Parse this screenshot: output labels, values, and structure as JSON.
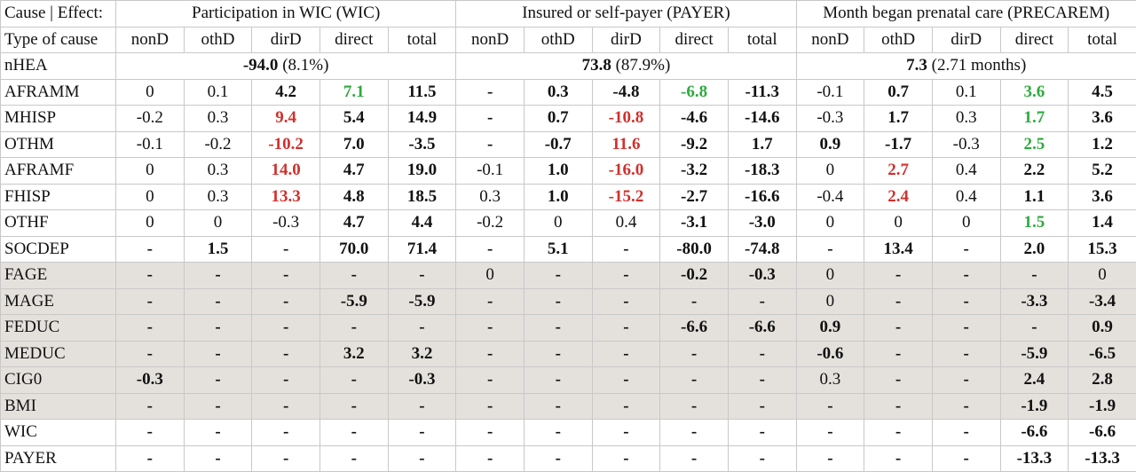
{
  "table": {
    "corner": "Cause | Effect:",
    "groups": [
      "Participation in WIC (WIC)",
      "Insured or self-payer (PAYER)",
      "Month began prenatal care (PRECAREM)"
    ],
    "type_label": "Type of cause",
    "subheaders": [
      "nonD",
      "othD",
      "dirD",
      "direct",
      "total"
    ],
    "summary": {
      "label": "nHEA",
      "cells": [
        {
          "value": "-94.0",
          "detail": "(8.1%)"
        },
        {
          "value": "73.8",
          "detail": "(87.9%)"
        },
        {
          "value": "7.3",
          "detail": "(2.71 months)"
        }
      ]
    },
    "rows": [
      {
        "label": "AFRAMM",
        "shaded": false,
        "cells": [
          "0",
          "0.1",
          "4.2",
          "7.1",
          "11.5",
          "-",
          "0.3",
          "-4.8",
          "-6.8",
          "-11.3",
          "-0.1",
          "0.7",
          "0.1",
          "3.6",
          "4.5"
        ],
        "styles": [
          "p",
          "p",
          "b",
          "g",
          "b",
          "b",
          "b",
          "b",
          "g",
          "b",
          "p",
          "b",
          "p",
          "g",
          "b"
        ]
      },
      {
        "label": "MHISP",
        "shaded": false,
        "cells": [
          "-0.2",
          "0.3",
          "9.4",
          "5.4",
          "14.9",
          "-",
          "0.7",
          "-10.8",
          "-4.6",
          "-14.6",
          "-0.3",
          "1.7",
          "0.3",
          "1.7",
          "3.6"
        ],
        "styles": [
          "p",
          "p",
          "r",
          "b",
          "b",
          "b",
          "b",
          "r",
          "b",
          "b",
          "p",
          "b",
          "p",
          "g",
          "b"
        ]
      },
      {
        "label": "OTHM",
        "shaded": false,
        "cells": [
          "-0.1",
          "-0.2",
          "-10.2",
          "7.0",
          "-3.5",
          "-",
          "-0.7",
          "11.6",
          "-9.2",
          "1.7",
          "0.9",
          "-1.7",
          "-0.3",
          "2.5",
          "1.2"
        ],
        "styles": [
          "p",
          "p",
          "r",
          "b",
          "b",
          "b",
          "b",
          "r",
          "b",
          "b",
          "b",
          "b",
          "p",
          "g",
          "b"
        ]
      },
      {
        "label": "AFRAMF",
        "shaded": false,
        "cells": [
          "0",
          "0.3",
          "14.0",
          "4.7",
          "19.0",
          "-0.1",
          "1.0",
          "-16.0",
          "-3.2",
          "-18.3",
          "0",
          "2.7",
          "0.4",
          "2.2",
          "5.2"
        ],
        "styles": [
          "p",
          "p",
          "r",
          "b",
          "b",
          "p",
          "b",
          "r",
          "b",
          "b",
          "p",
          "r",
          "p",
          "b",
          "b"
        ]
      },
      {
        "label": "FHISP",
        "shaded": false,
        "cells": [
          "0",
          "0.3",
          "13.3",
          "4.8",
          "18.5",
          "0.3",
          "1.0",
          "-15.2",
          "-2.7",
          "-16.6",
          "-0.4",
          "2.4",
          "0.4",
          "1.1",
          "3.6"
        ],
        "styles": [
          "p",
          "p",
          "r",
          "b",
          "b",
          "p",
          "b",
          "r",
          "b",
          "b",
          "p",
          "r",
          "p",
          "b",
          "b"
        ]
      },
      {
        "label": "OTHF",
        "shaded": false,
        "cells": [
          "0",
          "0",
          "-0.3",
          "4.7",
          "4.4",
          "-0.2",
          "0",
          "0.4",
          "-3.1",
          "-3.0",
          "0",
          "0",
          "0",
          "1.5",
          "1.4"
        ],
        "styles": [
          "p",
          "p",
          "p",
          "b",
          "b",
          "p",
          "p",
          "p",
          "b",
          "b",
          "p",
          "p",
          "p",
          "g",
          "b"
        ]
      },
      {
        "label": "SOCDEP",
        "shaded": false,
        "cells": [
          "-",
          "1.5",
          "-",
          "70.0",
          "71.4",
          "-",
          "5.1",
          "-",
          "-80.0",
          "-74.8",
          "-",
          "13.4",
          "-",
          "2.0",
          "15.3"
        ],
        "styles": [
          "b",
          "b",
          "b",
          "b",
          "b",
          "b",
          "b",
          "b",
          "b",
          "b",
          "b",
          "b",
          "b",
          "b",
          "b"
        ]
      },
      {
        "label": "FAGE",
        "shaded": true,
        "cells": [
          "-",
          "-",
          "-",
          "-",
          "-",
          "0",
          "-",
          "-",
          "-0.2",
          "-0.3",
          "0",
          "-",
          "-",
          "-",
          "0"
        ],
        "styles": [
          "b",
          "b",
          "b",
          "b",
          "b",
          "p",
          "b",
          "b",
          "b",
          "b",
          "p",
          "b",
          "b",
          "b",
          "p"
        ]
      },
      {
        "label": "MAGE",
        "shaded": true,
        "cells": [
          "-",
          "-",
          "-",
          "-5.9",
          "-5.9",
          "-",
          "-",
          "-",
          "-",
          "-",
          "0",
          "-",
          "-",
          "-3.3",
          "-3.4"
        ],
        "styles": [
          "b",
          "b",
          "b",
          "b",
          "b",
          "b",
          "b",
          "b",
          "b",
          "b",
          "p",
          "b",
          "b",
          "b",
          "b"
        ]
      },
      {
        "label": "FEDUC",
        "shaded": true,
        "cells": [
          "-",
          "-",
          "-",
          "-",
          "-",
          "-",
          "-",
          "-",
          "-6.6",
          "-6.6",
          "0.9",
          "-",
          "-",
          "-",
          "0.9"
        ],
        "styles": [
          "b",
          "b",
          "b",
          "b",
          "b",
          "b",
          "b",
          "b",
          "b",
          "b",
          "b",
          "b",
          "b",
          "b",
          "b"
        ]
      },
      {
        "label": "MEDUC",
        "shaded": true,
        "cells": [
          "-",
          "-",
          "-",
          "3.2",
          "3.2",
          "-",
          "-",
          "-",
          "-",
          "-",
          "-0.6",
          "-",
          "-",
          "-5.9",
          "-6.5"
        ],
        "styles": [
          "b",
          "b",
          "b",
          "b",
          "b",
          "b",
          "b",
          "b",
          "b",
          "b",
          "b",
          "b",
          "b",
          "b",
          "b"
        ]
      },
      {
        "label": "CIG0",
        "shaded": true,
        "cells": [
          "-0.3",
          "-",
          "-",
          "-",
          "-0.3",
          "-",
          "-",
          "-",
          "-",
          "-",
          "0.3",
          "-",
          "-",
          "2.4",
          "2.8"
        ],
        "styles": [
          "b",
          "b",
          "b",
          "b",
          "b",
          "b",
          "b",
          "b",
          "b",
          "b",
          "p",
          "b",
          "b",
          "b",
          "b"
        ]
      },
      {
        "label": "BMI",
        "shaded": true,
        "cells": [
          "-",
          "-",
          "-",
          "-",
          "-",
          "-",
          "-",
          "-",
          "-",
          "-",
          "-",
          "-",
          "-",
          "-1.9",
          "-1.9"
        ],
        "styles": [
          "b",
          "b",
          "b",
          "b",
          "b",
          "b",
          "b",
          "b",
          "b",
          "b",
          "b",
          "b",
          "b",
          "b",
          "b"
        ]
      },
      {
        "label": "WIC",
        "shaded": false,
        "cells": [
          "-",
          "-",
          "-",
          "-",
          "-",
          "-",
          "-",
          "-",
          "-",
          "-",
          "-",
          "-",
          "-",
          "-6.6",
          "-6.6"
        ],
        "styles": [
          "b",
          "b",
          "b",
          "b",
          "b",
          "b",
          "b",
          "b",
          "b",
          "b",
          "b",
          "b",
          "b",
          "b",
          "b"
        ]
      },
      {
        "label": "PAYER",
        "shaded": false,
        "cells": [
          "-",
          "-",
          "-",
          "-",
          "-",
          "-",
          "-",
          "-",
          "-",
          "-",
          "-",
          "-",
          "-",
          "-13.3",
          "-13.3"
        ],
        "styles": [
          "b",
          "b",
          "b",
          "b",
          "b",
          "b",
          "b",
          "b",
          "b",
          "b",
          "b",
          "b",
          "b",
          "b",
          "b"
        ]
      }
    ]
  }
}
